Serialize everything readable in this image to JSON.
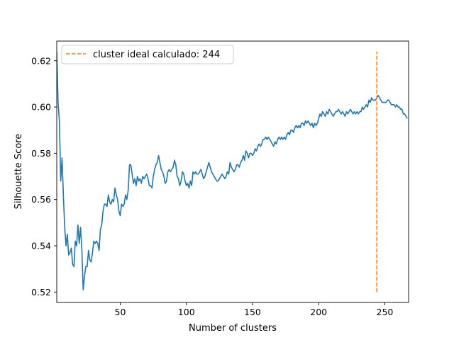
{
  "chart_data": {
    "type": "line",
    "title": "",
    "xlabel": "Number of clusters",
    "ylabel": "Silhouette Score",
    "xlim": [
      2,
      268
    ],
    "ylim": [
      0.5155,
      0.6285
    ],
    "xticks": [
      50,
      100,
      150,
      200,
      250
    ],
    "yticks": [
      0.52,
      0.54,
      0.56,
      0.58,
      0.6,
      0.62
    ],
    "ytick_labels": [
      "0.52",
      "0.54",
      "0.56",
      "0.58",
      "0.60",
      "0.62"
    ],
    "grid": false,
    "legend_position": "upper-left",
    "series": [
      {
        "type": "line",
        "color": "#1f77b4",
        "points": [
          [
            2,
            0.624
          ],
          [
            3,
            0.602
          ],
          [
            4,
            0.594
          ],
          [
            5,
            0.568
          ],
          [
            6,
            0.578
          ],
          [
            7,
            0.562
          ],
          [
            8,
            0.548
          ],
          [
            9,
            0.54
          ],
          [
            10,
            0.545
          ],
          [
            11,
            0.536
          ],
          [
            12,
            0.537
          ],
          [
            13,
            0.539
          ],
          [
            14,
            0.532
          ],
          [
            15,
            0.531
          ],
          [
            16,
            0.542
          ],
          [
            17,
            0.54
          ],
          [
            18,
            0.549
          ],
          [
            19,
            0.541
          ],
          [
            20,
            0.548
          ],
          [
            21,
            0.538
          ],
          [
            22,
            0.521
          ],
          [
            23,
            0.527
          ],
          [
            24,
            0.531
          ],
          [
            25,
            0.531
          ],
          [
            26,
            0.538
          ],
          [
            27,
            0.534
          ],
          [
            28,
            0.533
          ],
          [
            29,
            0.537
          ],
          [
            30,
            0.542
          ],
          [
            31,
            0.541
          ],
          [
            32,
            0.542
          ],
          [
            33,
            0.541
          ],
          [
            34,
            0.538
          ],
          [
            35,
            0.547
          ],
          [
            36,
            0.549
          ],
          [
            37,
            0.555
          ],
          [
            38,
            0.558
          ],
          [
            39,
            0.558
          ],
          [
            40,
            0.557
          ],
          [
            41,
            0.562
          ],
          [
            42,
            0.559
          ],
          [
            43,
            0.558
          ],
          [
            44,
            0.56
          ],
          [
            45,
            0.559
          ],
          [
            46,
            0.565
          ],
          [
            47,
            0.562
          ],
          [
            48,
            0.56
          ],
          [
            49,
            0.555
          ],
          [
            50,
            0.553
          ],
          [
            51,
            0.558
          ],
          [
            52,
            0.557
          ],
          [
            53,
            0.558
          ],
          [
            54,
            0.562
          ],
          [
            55,
            0.56
          ],
          [
            56,
            0.564
          ],
          [
            57,
            0.575
          ],
          [
            58,
            0.575
          ],
          [
            59,
            0.571
          ],
          [
            60,
            0.567
          ],
          [
            61,
            0.569
          ],
          [
            62,
            0.566
          ],
          [
            63,
            0.57
          ],
          [
            64,
            0.568
          ],
          [
            65,
            0.569
          ],
          [
            66,
            0.567
          ],
          [
            67,
            0.57
          ],
          [
            68,
            0.569
          ],
          [
            69,
            0.57
          ],
          [
            70,
            0.571
          ],
          [
            71,
            0.569
          ],
          [
            72,
            0.566
          ],
          [
            73,
            0.566
          ],
          [
            74,
            0.565
          ],
          [
            75,
            0.57
          ],
          [
            76,
            0.573
          ],
          [
            77,
            0.575
          ],
          [
            78,
            0.576
          ],
          [
            79,
            0.579
          ],
          [
            80,
            0.576
          ],
          [
            81,
            0.573
          ],
          [
            82,
            0.572
          ],
          [
            83,
            0.57
          ],
          [
            84,
            0.567
          ],
          [
            85,
            0.568
          ],
          [
            86,
            0.572
          ],
          [
            87,
            0.573
          ],
          [
            88,
            0.572
          ],
          [
            89,
            0.573
          ],
          [
            90,
            0.574
          ],
          [
            91,
            0.577
          ],
          [
            92,
            0.575
          ],
          [
            93,
            0.57
          ],
          [
            94,
            0.569
          ],
          [
            95,
            0.566
          ],
          [
            96,
            0.568
          ],
          [
            97,
            0.572
          ],
          [
            98,
            0.571
          ],
          [
            99,
            0.568
          ],
          [
            100,
            0.566
          ],
          [
            101,
            0.567
          ],
          [
            102,
            0.565
          ],
          [
            103,
            0.568
          ],
          [
            104,
            0.566
          ],
          [
            105,
            0.572
          ],
          [
            106,
            0.571
          ],
          [
            107,
            0.572
          ],
          [
            108,
            0.571
          ],
          [
            109,
            0.571
          ],
          [
            110,
            0.572
          ],
          [
            111,
            0.573
          ],
          [
            112,
            0.571
          ],
          [
            113,
            0.569
          ],
          [
            114,
            0.57
          ],
          [
            115,
            0.572
          ],
          [
            116,
            0.574
          ],
          [
            117,
            0.576
          ],
          [
            118,
            0.574
          ],
          [
            119,
            0.572
          ],
          [
            120,
            0.571
          ],
          [
            121,
            0.57
          ],
          [
            122,
            0.569
          ],
          [
            123,
            0.568
          ],
          [
            124,
            0.568
          ],
          [
            125,
            0.569
          ],
          [
            126,
            0.57
          ],
          [
            127,
            0.571
          ],
          [
            128,
            0.57
          ],
          [
            129,
            0.569
          ],
          [
            130,
            0.57
          ],
          [
            131,
            0.572
          ],
          [
            132,
            0.571
          ],
          [
            133,
            0.576
          ],
          [
            134,
            0.574
          ],
          [
            135,
            0.573
          ],
          [
            136,
            0.572
          ],
          [
            137,
            0.573
          ],
          [
            138,
            0.575
          ],
          [
            139,
            0.575
          ],
          [
            140,
            0.574
          ],
          [
            141,
            0.576
          ],
          [
            142,
            0.577
          ],
          [
            143,
            0.579
          ],
          [
            144,
            0.577
          ],
          [
            145,
            0.581
          ],
          [
            146,
            0.58
          ],
          [
            147,
            0.578
          ],
          [
            148,
            0.58
          ],
          [
            149,
            0.58
          ],
          [
            150,
            0.579
          ],
          [
            151,
            0.58
          ],
          [
            152,
            0.582
          ],
          [
            153,
            0.581
          ],
          [
            154,
            0.583
          ],
          [
            155,
            0.584
          ],
          [
            156,
            0.583
          ],
          [
            157,
            0.584
          ],
          [
            158,
            0.586
          ],
          [
            159,
            0.586
          ],
          [
            160,
            0.587
          ],
          [
            161,
            0.586
          ],
          [
            162,
            0.587
          ],
          [
            163,
            0.586
          ],
          [
            164,
            0.585
          ],
          [
            165,
            0.584
          ],
          [
            166,
            0.583
          ],
          [
            167,
            0.585
          ],
          [
            168,
            0.584
          ],
          [
            169,
            0.586
          ],
          [
            170,
            0.587
          ],
          [
            171,
            0.586
          ],
          [
            172,
            0.587
          ],
          [
            173,
            0.586
          ],
          [
            174,
            0.587
          ],
          [
            175,
            0.586
          ],
          [
            176,
            0.588
          ],
          [
            177,
            0.589
          ],
          [
            178,
            0.588
          ],
          [
            179,
            0.59
          ],
          [
            180,
            0.59
          ],
          [
            181,
            0.589
          ],
          [
            182,
            0.591
          ],
          [
            183,
            0.592
          ],
          [
            184,
            0.591
          ],
          [
            185,
            0.592
          ],
          [
            186,
            0.591
          ],
          [
            187,
            0.593
          ],
          [
            188,
            0.593
          ],
          [
            189,
            0.592
          ],
          [
            190,
            0.594
          ],
          [
            191,
            0.593
          ],
          [
            192,
            0.594
          ],
          [
            193,
            0.593
          ],
          [
            194,
            0.592
          ],
          [
            195,
            0.593
          ],
          [
            196,
            0.591
          ],
          [
            197,
            0.593
          ],
          [
            198,
            0.592
          ],
          [
            199,
            0.593
          ],
          [
            200,
            0.595
          ],
          [
            201,
            0.597
          ],
          [
            202,
            0.596
          ],
          [
            203,
            0.598
          ],
          [
            204,
            0.597
          ],
          [
            205,
            0.596
          ],
          [
            206,
            0.598
          ],
          [
            207,
            0.597
          ],
          [
            208,
            0.599
          ],
          [
            209,
            0.598
          ],
          [
            210,
            0.597
          ],
          [
            211,
            0.596
          ],
          [
            212,
            0.597
          ],
          [
            213,
            0.598
          ],
          [
            214,
            0.598
          ],
          [
            215,
            0.599
          ],
          [
            216,
            0.598
          ],
          [
            217,
            0.597
          ],
          [
            218,
            0.598
          ],
          [
            219,
            0.597
          ],
          [
            220,
            0.596
          ],
          [
            221,
            0.598
          ],
          [
            222,
            0.597
          ],
          [
            223,
            0.598
          ],
          [
            224,
            0.599
          ],
          [
            225,
            0.598
          ],
          [
            226,
            0.597
          ],
          [
            227,
            0.598
          ],
          [
            228,
            0.597
          ],
          [
            229,
            0.598
          ],
          [
            230,
            0.597
          ],
          [
            231,
            0.598
          ],
          [
            232,
            0.598
          ],
          [
            233,
            0.6
          ],
          [
            234,
            0.599
          ],
          [
            235,
            0.6
          ],
          [
            236,
            0.601
          ],
          [
            237,
            0.6
          ],
          [
            238,
            0.603
          ],
          [
            239,
            0.602
          ],
          [
            240,
            0.604
          ],
          [
            241,
            0.603
          ],
          [
            242,
            0.603
          ],
          [
            243,
            0.603
          ],
          [
            244,
            0.604
          ],
          [
            245,
            0.605
          ],
          [
            246,
            0.604
          ],
          [
            247,
            0.603
          ],
          [
            248,
            0.602
          ],
          [
            249,
            0.602
          ],
          [
            250,
            0.602
          ],
          [
            251,
            0.602
          ],
          [
            252,
            0.603
          ],
          [
            253,
            0.603
          ],
          [
            254,
            0.602
          ],
          [
            255,
            0.601
          ],
          [
            256,
            0.601
          ],
          [
            257,
            0.601
          ],
          [
            258,
            0.6
          ],
          [
            259,
            0.601
          ],
          [
            260,
            0.6
          ],
          [
            261,
            0.6
          ],
          [
            262,
            0.599
          ],
          [
            263,
            0.599
          ],
          [
            264,
            0.597
          ],
          [
            265,
            0.597
          ],
          [
            266,
            0.596
          ],
          [
            267,
            0.595
          ]
        ]
      },
      {
        "name": "cluster ideal calculado: 244",
        "type": "vline",
        "color": "#ff7f0e",
        "dashed": true,
        "x": 244,
        "y_range": [
          0.52,
          0.624
        ]
      }
    ]
  }
}
